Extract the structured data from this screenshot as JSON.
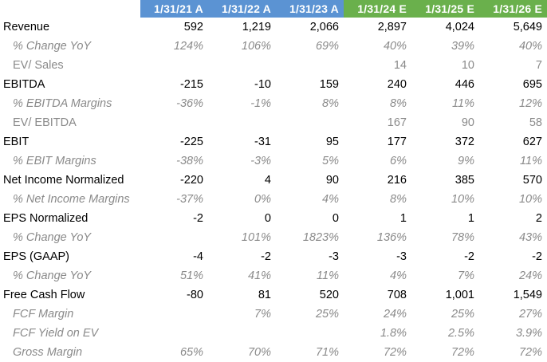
{
  "header": [
    "",
    "1/31/21 A",
    "1/31/22 A",
    "1/31/23 A",
    "1/31/24 E",
    "1/31/25 E",
    "1/31/26 E"
  ],
  "rows": [
    {
      "label": "Revenue",
      "values": [
        "592",
        "1,219",
        "2,066",
        "2,897",
        "4,024",
        "5,649"
      ]
    },
    {
      "label": "% Change YoY",
      "values": [
        "124%",
        "106%",
        "69%",
        "40%",
        "39%",
        "40%"
      ]
    },
    {
      "label": "EV/ Sales",
      "values": [
        "",
        "",
        "",
        "14",
        "10",
        "7"
      ]
    },
    {
      "label": "EBITDA",
      "values": [
        "-215",
        "-10",
        "159",
        "240",
        "446",
        "695"
      ]
    },
    {
      "label": "% EBITDA Margins",
      "values": [
        "-36%",
        "-1%",
        "8%",
        "8%",
        "11%",
        "12%"
      ]
    },
    {
      "label": "EV/ EBITDA",
      "values": [
        "",
        "",
        "",
        "167",
        "90",
        "58"
      ]
    },
    {
      "label": "EBIT",
      "values": [
        "-225",
        "-31",
        "95",
        "177",
        "372",
        "627"
      ]
    },
    {
      "label": "% EBIT Margins",
      "values": [
        "-38%",
        "-3%",
        "5%",
        "6%",
        "9%",
        "11%"
      ]
    },
    {
      "label": "Net Income Normalized",
      "values": [
        "-220",
        "4",
        "90",
        "216",
        "385",
        "570"
      ]
    },
    {
      "label": "% Net Income Margins",
      "values": [
        "-37%",
        "0%",
        "4%",
        "8%",
        "10%",
        "10%"
      ]
    },
    {
      "label": "EPS Normalized",
      "values": [
        "-2",
        "0",
        "0",
        "1",
        "1",
        "2"
      ]
    },
    {
      "label": "% Change YoY",
      "values": [
        "",
        "101%",
        "1823%",
        "136%",
        "78%",
        "43%"
      ]
    },
    {
      "label": "EPS (GAAP)",
      "values": [
        "-4",
        "-2",
        "-3",
        "-3",
        "-2",
        "-2"
      ]
    },
    {
      "label": "% Change YoY",
      "values": [
        "51%",
        "41%",
        "11%",
        "4%",
        "7%",
        "24%"
      ]
    },
    {
      "label": "Free Cash Flow",
      "values": [
        "-80",
        "81",
        "520",
        "708",
        "1,001",
        "1,549"
      ]
    },
    {
      "label": "FCF Margin",
      "values": [
        "",
        "7%",
        "25%",
        "24%",
        "25%",
        "27%"
      ]
    },
    {
      "label": "FCF Yield on EV",
      "values": [
        "",
        "",
        "",
        "1.8%",
        "2.5%",
        "3.9%"
      ]
    },
    {
      "label": "Gross Margin",
      "values": [
        "65%",
        "70%",
        "71%",
        "72%",
        "72%",
        "72%"
      ]
    }
  ],
  "colors": {
    "actual_header": "#5b93d3",
    "estimate_header": "#6ab04c",
    "sub_text": "#8a8a8a"
  }
}
